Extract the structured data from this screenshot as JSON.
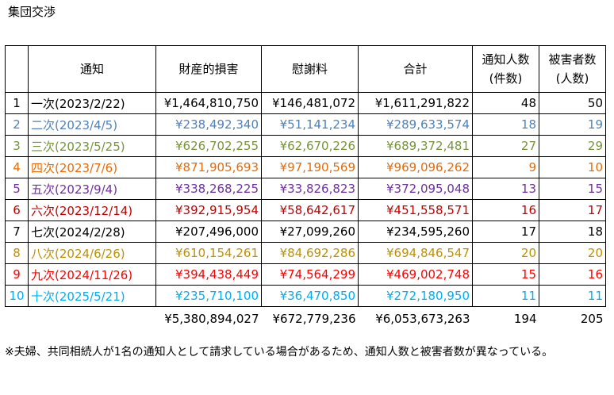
{
  "title": "集団交渉",
  "headers": {
    "notice": "通知",
    "property_damage": "財産的損害",
    "consolation": "慰謝料",
    "total": "合計",
    "notifiers_line1": "通知人数",
    "notifiers_line2": "(件数)",
    "victims_line1": "被害者数",
    "victims_line2": "(人数)"
  },
  "rows": [
    {
      "no": "1",
      "name": "一次(2023/2/22)",
      "property": "¥1,464,810,750",
      "consolation": "¥146,481,072",
      "total": "¥1,611,291,822",
      "notifiers": "48",
      "victims": "50",
      "color": "#000000"
    },
    {
      "no": "2",
      "name": "二次(2023/4/5)",
      "property": "¥238,492,340",
      "consolation": "¥51,141,234",
      "total": "¥289,633,574",
      "notifiers": "18",
      "victims": "19",
      "color": "#4f81bd"
    },
    {
      "no": "3",
      "name": "三次(2023/5/25)",
      "property": "¥626,702,255",
      "consolation": "¥62,670,226",
      "total": "¥689,372,481",
      "notifiers": "27",
      "victims": "29",
      "color": "#77933c"
    },
    {
      "no": "4",
      "name": "四次(2023/7/6)",
      "property": "¥871,905,693",
      "consolation": "¥97,190,569",
      "total": "¥969,096,262",
      "notifiers": "9",
      "victims": "10",
      "color": "#e46c0a"
    },
    {
      "no": "5",
      "name": "五次(2023/9/4)",
      "property": "¥338,268,225",
      "consolation": "¥33,826,823",
      "total": "¥372,095,048",
      "notifiers": "13",
      "victims": "15",
      "color": "#7030a0"
    },
    {
      "no": "6",
      "name": "六次(2023/12/14)",
      "property": "¥392,915,954",
      "consolation": "¥58,642,617",
      "total": "¥451,558,571",
      "notifiers": "16",
      "victims": "17",
      "color": "#c00000"
    },
    {
      "no": "7",
      "name": "七次(2024/2/28)",
      "property": "¥207,496,000",
      "consolation": "¥27,099,260",
      "total": "¥234,595,260",
      "notifiers": "17",
      "victims": "18",
      "color": "#000000"
    },
    {
      "no": "8",
      "name": "八次(2024/6/26)",
      "property": "¥610,154,261",
      "consolation": "¥84,692,286",
      "total": "¥694,846,547",
      "notifiers": "20",
      "victims": "20",
      "color": "#bf9000"
    },
    {
      "no": "9",
      "name": "九次(2024/11/26)",
      "property": "¥394,438,449",
      "consolation": "¥74,564,299",
      "total": "¥469,002,748",
      "notifiers": "15",
      "victims": "16",
      "color": "#ff0000"
    },
    {
      "no": "10",
      "name": "十次(2025/5/21)",
      "property": "¥235,710,100",
      "consolation": "¥36,470,850",
      "total": "¥272,180,950",
      "notifiers": "11",
      "victims": "11",
      "color": "#00b0f0"
    }
  ],
  "totals": {
    "property": "¥5,380,894,027",
    "consolation": "¥672,779,236",
    "total": "¥6,053,673,263",
    "notifiers": "194",
    "victims": "205"
  },
  "note": "※夫婦、共同相続人が1名の通知人として請求している場合があるため、通知人数と被害者数が異なっている。"
}
